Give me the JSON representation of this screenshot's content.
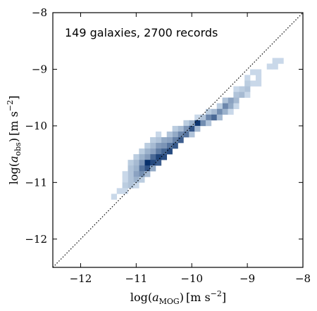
{
  "chart_data": {
    "type": "heatmap",
    "title": "",
    "annotation": "149 galaxies, 2700 records",
    "xlabel": {
      "prefix": "log(",
      "var": "a",
      "sub": "MOG",
      "close": ")",
      "unit": "[m s",
      "exp": "−2",
      "unit_close": "]"
    },
    "ylabel": {
      "prefix": "log(",
      "var": "a",
      "sub": "obs",
      "close": ")",
      "unit": "[m s",
      "exp": "−2",
      "unit_close": "]"
    },
    "xlim": [
      -12.5,
      -8
    ],
    "ylim": [
      -12.5,
      -8
    ],
    "xticks": [
      -12,
      -11,
      -10,
      -9,
      -8
    ],
    "yticks": [
      -12,
      -11,
      -10,
      -9,
      -8
    ],
    "xtick_labels": [
      "−12",
      "−11",
      "−10",
      "−9",
      "−8"
    ],
    "ytick_labels": [
      "−12",
      "−11",
      "−10",
      "−9",
      "−8"
    ],
    "reference_line": {
      "style": "dotted",
      "x": [
        -12.5,
        -8
      ],
      "y": [
        -12.5,
        -8
      ]
    },
    "grid": false,
    "colormap": "blues",
    "bin_width": 0.1,
    "bins": [
      [
        -8.5,
        -8.95,
        1
      ],
      [
        -8.6,
        -8.95,
        1
      ],
      [
        -8.5,
        -8.85,
        1
      ],
      [
        -8.4,
        -8.85,
        1
      ],
      [
        -8.8,
        -9.05,
        1
      ],
      [
        -8.9,
        -9.05,
        1
      ],
      [
        -8.8,
        -9.15,
        1
      ],
      [
        -9.0,
        -9.15,
        1
      ],
      [
        -8.9,
        -9.25,
        1
      ],
      [
        -8.8,
        -9.25,
        1
      ],
      [
        -9.0,
        -9.25,
        2
      ],
      [
        -9.0,
        -9.35,
        3
      ],
      [
        -9.1,
        -9.35,
        2
      ],
      [
        -9.2,
        -9.35,
        1
      ],
      [
        -9.1,
        -9.45,
        4
      ],
      [
        -9.2,
        -9.45,
        3
      ],
      [
        -9.0,
        -9.45,
        1
      ],
      [
        -9.2,
        -9.55,
        4
      ],
      [
        -9.3,
        -9.55,
        7
      ],
      [
        -9.4,
        -9.55,
        3
      ],
      [
        -9.3,
        -9.65,
        6
      ],
      [
        -9.4,
        -9.65,
        11
      ],
      [
        -9.5,
        -9.65,
        2
      ],
      [
        -9.2,
        -9.65,
        1
      ],
      [
        -9.5,
        -9.75,
        10
      ],
      [
        -9.6,
        -9.75,
        4
      ],
      [
        -9.4,
        -9.75,
        5
      ],
      [
        -9.3,
        -9.75,
        1
      ],
      [
        -9.7,
        -9.75,
        2
      ],
      [
        -9.6,
        -9.85,
        16
      ],
      [
        -9.7,
        -9.85,
        11
      ],
      [
        -9.5,
        -9.85,
        4
      ],
      [
        -9.8,
        -9.85,
        3
      ],
      [
        -9.9,
        -9.85,
        1
      ],
      [
        -9.8,
        -9.95,
        10
      ],
      [
        -9.9,
        -9.95,
        26
      ],
      [
        -10.0,
        -9.95,
        5
      ],
      [
        -9.7,
        -9.95,
        3
      ],
      [
        -10.1,
        -9.95,
        2
      ],
      [
        -10.0,
        -10.05,
        20
      ],
      [
        -10.1,
        -10.05,
        9
      ],
      [
        -9.9,
        -10.05,
        4
      ],
      [
        -10.2,
        -10.05,
        4
      ],
      [
        -10.3,
        -10.05,
        2
      ],
      [
        -10.1,
        -10.15,
        14
      ],
      [
        -10.2,
        -10.15,
        11
      ],
      [
        -10.3,
        -10.15,
        6
      ],
      [
        -10.0,
        -10.15,
        3
      ],
      [
        -10.4,
        -10.15,
        3
      ],
      [
        -10.6,
        -10.15,
        1
      ],
      [
        -10.2,
        -10.25,
        18
      ],
      [
        -10.3,
        -10.25,
        12
      ],
      [
        -10.4,
        -10.25,
        7
      ],
      [
        -10.5,
        -10.25,
        6
      ],
      [
        -10.6,
        -10.25,
        3
      ],
      [
        -10.7,
        -10.25,
        2
      ],
      [
        -10.3,
        -10.35,
        19
      ],
      [
        -10.4,
        -10.35,
        14
      ],
      [
        -10.5,
        -10.35,
        9
      ],
      [
        -10.6,
        -10.35,
        8
      ],
      [
        -10.7,
        -10.35,
        4
      ],
      [
        -10.8,
        -10.35,
        2
      ],
      [
        -10.4,
        -10.45,
        22
      ],
      [
        -10.5,
        -10.45,
        17
      ],
      [
        -10.6,
        -10.45,
        13
      ],
      [
        -10.7,
        -10.45,
        7
      ],
      [
        -10.8,
        -10.45,
        5
      ],
      [
        -10.9,
        -10.45,
        2
      ],
      [
        -10.5,
        -10.55,
        21
      ],
      [
        -10.6,
        -10.55,
        23
      ],
      [
        -10.7,
        -10.55,
        16
      ],
      [
        -10.8,
        -10.55,
        8
      ],
      [
        -10.9,
        -10.55,
        5
      ],
      [
        -11.0,
        -10.55,
        2
      ],
      [
        -10.6,
        -10.65,
        18
      ],
      [
        -10.7,
        -10.65,
        22
      ],
      [
        -10.8,
        -10.65,
        27
      ],
      [
        -10.9,
        -10.65,
        9
      ],
      [
        -11.0,
        -10.65,
        4
      ],
      [
        -11.1,
        -10.65,
        2
      ],
      [
        -10.8,
        -10.75,
        20
      ],
      [
        -10.9,
        -10.75,
        14
      ],
      [
        -10.7,
        -10.75,
        6
      ],
      [
        -11.0,
        -10.75,
        5
      ],
      [
        -11.1,
        -10.75,
        3
      ],
      [
        -10.9,
        -10.85,
        10
      ],
      [
        -11.0,
        -10.85,
        7
      ],
      [
        -10.8,
        -10.85,
        4
      ],
      [
        -11.1,
        -10.85,
        3
      ],
      [
        -11.2,
        -10.85,
        1
      ],
      [
        -11.0,
        -10.95,
        5
      ],
      [
        -11.1,
        -10.95,
        3
      ],
      [
        -10.9,
        -10.95,
        2
      ],
      [
        -11.2,
        -10.95,
        1
      ],
      [
        -11.1,
        -11.05,
        3
      ],
      [
        -11.2,
        -11.05,
        2
      ],
      [
        -11.0,
        -11.05,
        1
      ],
      [
        -11.3,
        -11.15,
        1
      ],
      [
        -11.2,
        -11.15,
        1
      ],
      [
        -11.4,
        -11.25,
        1
      ]
    ]
  }
}
